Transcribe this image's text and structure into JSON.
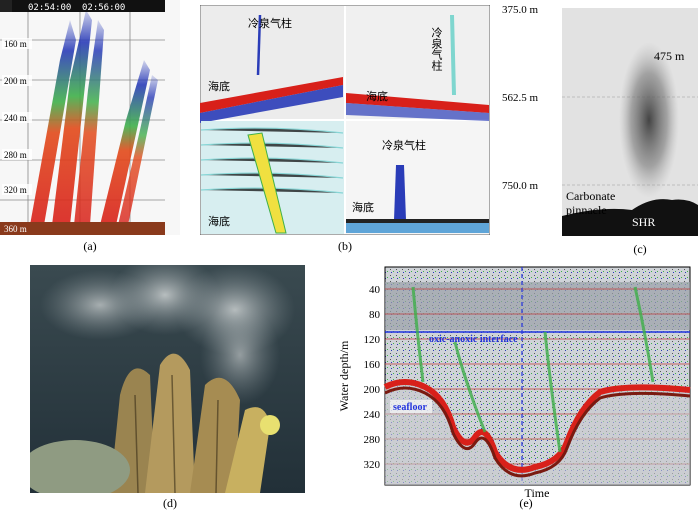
{
  "panels": {
    "a": {
      "caption": "(a)",
      "time_labels": [
        "02:54:00",
        "02:56:00"
      ],
      "depth_labels": [
        "160 m",
        "200 m",
        "240 m",
        "280 m",
        "320 m",
        "360 m"
      ]
    },
    "b": {
      "caption": "(b)",
      "cold_seep_plume": "冷泉气柱",
      "seafloor": "海底"
    },
    "c": {
      "caption": "(c)",
      "depth_labels": [
        "375.0 m",
        "562.5 m",
        "750.0 m"
      ],
      "plume_height": "475 m",
      "carbonate_line1": "Carbonate",
      "carbonate_line2": "pinnacle",
      "shr": "SHR"
    },
    "d": {
      "caption": "(d)"
    },
    "e": {
      "caption": "(e)",
      "ylabel": "Water depth/m",
      "xlabel": "Time",
      "y_ticks": [
        "40",
        "80",
        "120",
        "160",
        "200",
        "240",
        "280",
        "320"
      ],
      "interface_label": "oxic-anoxic interface",
      "seafloor_label": "seafloor"
    }
  },
  "colors": {
    "echo_blue": "#2a3cb8",
    "echo_green": "#3fb04a",
    "echo_yellow": "#f0e040",
    "echo_red": "#d8201a",
    "seafloor_brown": "#8a3a1c",
    "interface_blue": "#2233dd"
  }
}
